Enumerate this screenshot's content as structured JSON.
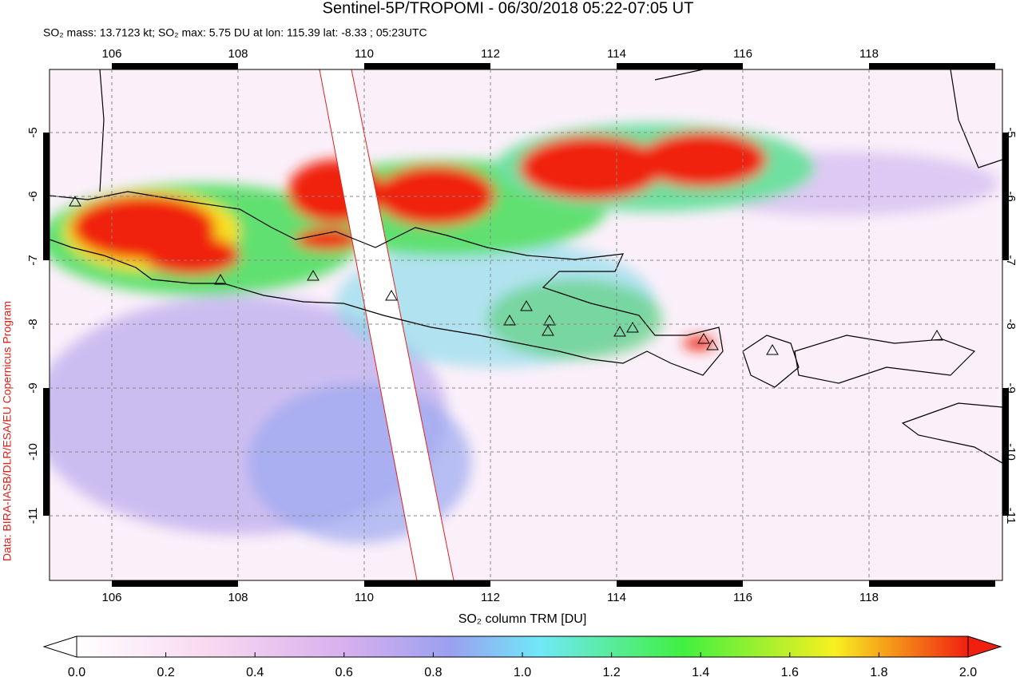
{
  "title": "Sentinel-5P/TROPOMI - 06/30/2018 05:22-07:05 UT",
  "subtitle": "SO₂ mass: 13.7123 kt; SO₂ max: 5.75 DU at lon: 115.39 lat: -8.33 ; 05:23UTC",
  "credit": "Data: BIRA-IASB/DLR/ESA/EU Copernicus Program",
  "x_ticks": [
    106,
    108,
    110,
    112,
    114,
    116,
    118
  ],
  "y_ticks": [
    -5,
    -6,
    -7,
    -8,
    -9,
    -10,
    -11
  ],
  "colorbar": {
    "label": "SO₂ column TRM [DU]",
    "ticks": [
      {
        "value": 0,
        "label": "0.0"
      },
      {
        "value": 0.2,
        "label": "0.2"
      },
      {
        "value": 0.4,
        "label": "0.4"
      },
      {
        "value": 0.6,
        "label": "0.6"
      },
      {
        "value": 0.8,
        "label": "0.8"
      },
      {
        "value": 1.0,
        "label": "1.0"
      },
      {
        "value": 1.2,
        "label": "1.2"
      },
      {
        "value": 1.4,
        "label": "1.4"
      },
      {
        "value": 1.6,
        "label": "1.6"
      },
      {
        "value": 1.8,
        "label": "1.8"
      },
      {
        "value": 2.0,
        "label": "2.0"
      }
    ]
  }
}
